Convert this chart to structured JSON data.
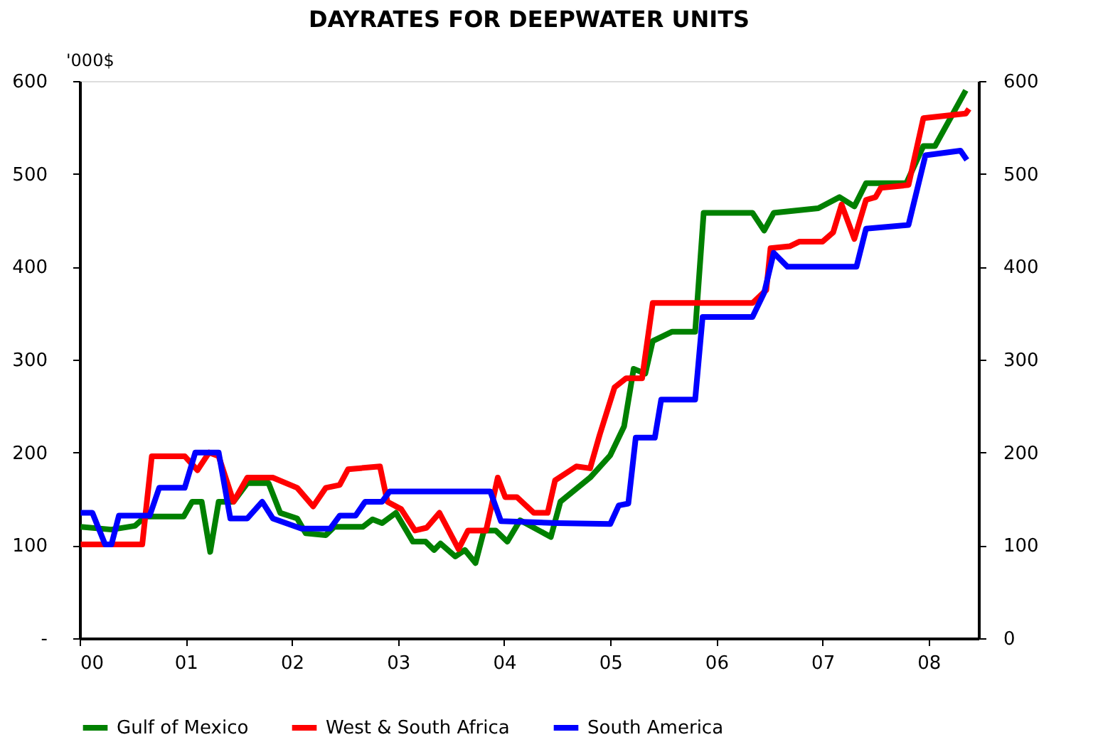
{
  "chart_data": {
    "type": "line",
    "title": "DAYRATES FOR DEEPWATER UNITS",
    "ylabel": "'000$",
    "xlim": [
      0,
      8.47
    ],
    "xticks": [
      {
        "value": 0,
        "label": "00"
      },
      {
        "value": 1,
        "label": "01"
      },
      {
        "value": 2,
        "label": "02"
      },
      {
        "value": 3,
        "label": "03"
      },
      {
        "value": 4,
        "label": "04"
      },
      {
        "value": 5,
        "label": "05"
      },
      {
        "value": 6,
        "label": "06"
      },
      {
        "value": 7,
        "label": "07"
      },
      {
        "value": 8,
        "label": "08"
      }
    ],
    "ylim": [
      0,
      600
    ],
    "yticks": [
      {
        "value": 0,
        "label": "-"
      },
      100,
      200,
      300,
      400,
      500,
      600
    ],
    "y2lim": [
      0,
      600
    ],
    "y2ticks": [
      0,
      100,
      200,
      300,
      400,
      500,
      600
    ],
    "grid": false,
    "legend": "bottom",
    "line_style": "solid",
    "marker": "none",
    "series": [
      {
        "name": "Gulf of Mexico",
        "color": "#008000",
        "x": [
          0.01,
          0.3,
          0.52,
          0.62,
          0.98,
          1.06,
          1.15,
          1.23,
          1.31,
          1.45,
          1.58,
          1.78,
          1.89,
          2.05,
          2.13,
          2.32,
          2.4,
          2.67,
          2.76,
          2.85,
          2.98,
          3.14,
          3.26,
          3.34,
          3.4,
          3.54,
          3.63,
          3.73,
          3.81,
          3.92,
          4.03,
          4.15,
          4.28,
          4.44,
          4.53,
          4.81,
          5.0,
          5.13,
          5.22,
          5.33,
          5.4,
          5.58,
          5.8,
          5.88,
          6.34,
          6.45,
          6.54,
          6.96,
          7.16,
          7.3,
          7.41,
          7.79,
          7.95,
          8.06,
          8.35
        ],
        "values": [
          120,
          117,
          121,
          131,
          131,
          147,
          147,
          93,
          147,
          147,
          167,
          167,
          135,
          129,
          113,
          111,
          120,
          120,
          128,
          124,
          135,
          104,
          104,
          95,
          102,
          88,
          95,
          81,
          116,
          116,
          104,
          127,
          119,
          109,
          147,
          173,
          197,
          228,
          290,
          285,
          320,
          330,
          330,
          458,
          458,
          439,
          458,
          463,
          475,
          465,
          490,
          490,
          530,
          530,
          590
        ]
      },
      {
        "name": "West & South Africa",
        "color": "#ff0000",
        "x": [
          0.01,
          0.59,
          0.68,
          0.99,
          1.11,
          1.22,
          1.31,
          1.45,
          1.58,
          1.82,
          2.05,
          2.2,
          2.32,
          2.45,
          2.53,
          2.83,
          2.9,
          3.03,
          3.16,
          3.27,
          3.39,
          3.57,
          3.66,
          3.83,
          3.94,
          4.01,
          4.12,
          4.28,
          4.41,
          4.48,
          4.68,
          4.81,
          4.9,
          5.04,
          5.15,
          5.3,
          5.4,
          6.34,
          6.47,
          6.51,
          6.69,
          6.78,
          7.0,
          7.1,
          7.18,
          7.3,
          7.41,
          7.5,
          7.55,
          7.81,
          7.95,
          8.35,
          8.38
        ],
        "values": [
          101,
          101,
          196,
          196,
          181,
          200,
          196,
          147,
          173,
          173,
          162,
          142,
          162,
          165,
          182,
          185,
          147,
          139,
          116,
          119,
          135,
          96,
          116,
          116,
          173,
          152,
          152,
          135,
          135,
          170,
          185,
          183,
          219,
          270,
          280,
          280,
          361,
          361,
          375,
          420,
          422,
          427,
          427,
          437,
          467,
          430,
          472,
          475,
          485,
          488,
          560,
          565,
          570
        ]
      },
      {
        "name": "South America",
        "color": "#0000ff",
        "x": [
          0.01,
          0.12,
          0.24,
          0.3,
          0.37,
          0.66,
          0.75,
          0.99,
          1.09,
          1.31,
          1.42,
          1.58,
          1.72,
          1.82,
          2.09,
          2.36,
          2.45,
          2.6,
          2.69,
          2.85,
          2.92,
          3.87,
          3.97,
          4.5,
          5.0,
          5.08,
          5.17,
          5.24,
          5.42,
          5.48,
          5.8,
          5.87,
          6.34,
          6.45,
          6.54,
          6.67,
          7.32,
          7.41,
          7.81,
          7.97,
          8.3,
          8.36
        ],
        "values": [
          135,
          135,
          101,
          101,
          132,
          132,
          162,
          162,
          200,
          200,
          129,
          129,
          147,
          129,
          118,
          118,
          132,
          132,
          147,
          147,
          158,
          158,
          126,
          124,
          123,
          143,
          145,
          216,
          216,
          257,
          257,
          346,
          346,
          372,
          415,
          400,
          400,
          441,
          445,
          520,
          525,
          515
        ]
      }
    ]
  }
}
